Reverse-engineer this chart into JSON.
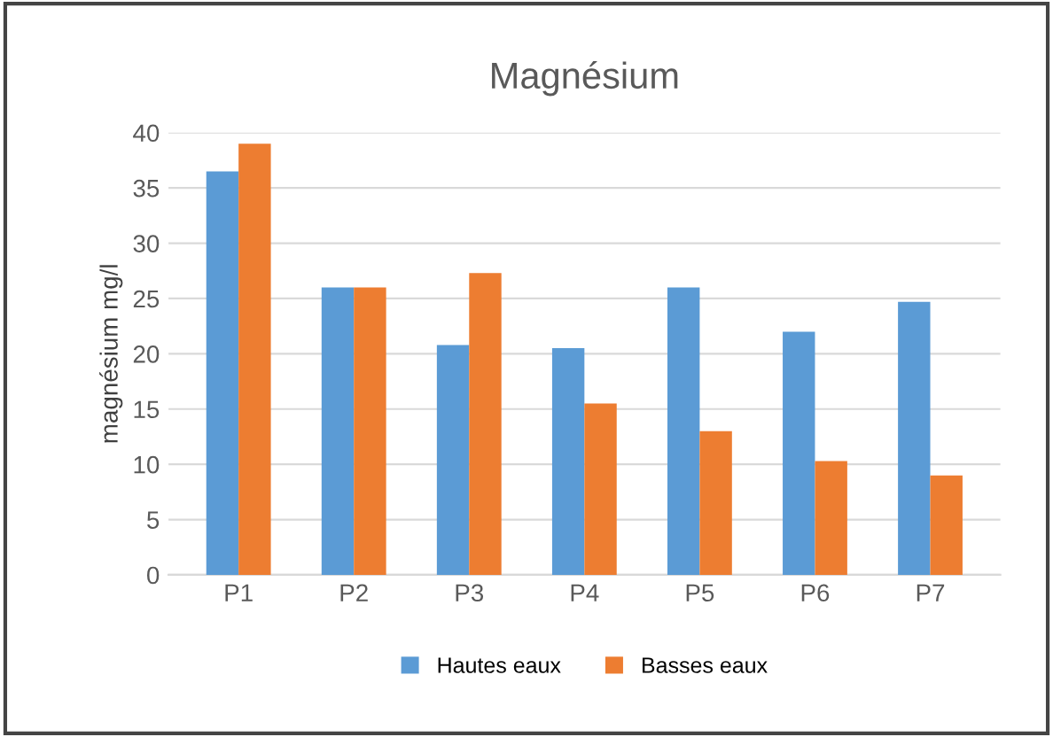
{
  "chart_data": {
    "type": "bar",
    "title": "Magnésium",
    "ylabel": "magnésium mg/l",
    "categories": [
      "P1",
      "P2",
      "P3",
      "P4",
      "P5",
      "P6",
      "P7"
    ],
    "series": [
      {
        "name": "Hautes eaux",
        "color": "#5b9bd5",
        "values": [
          36.5,
          26,
          20.8,
          20.5,
          26,
          22,
          24.7
        ]
      },
      {
        "name": "Basses eaux",
        "color": "#ed7d31",
        "values": [
          39,
          26,
          27.3,
          15.5,
          13,
          10.3,
          9
        ]
      }
    ],
    "ylim": [
      0,
      40
    ],
    "yticks": [
      0,
      5,
      10,
      15,
      20,
      25,
      30,
      35,
      40
    ],
    "grid": "y",
    "legend": "bottom"
  }
}
